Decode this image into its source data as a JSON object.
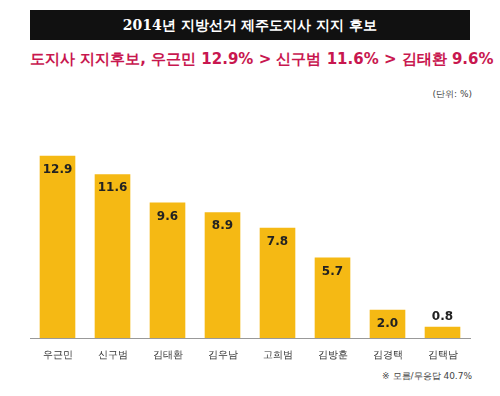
{
  "chart_data": {
    "type": "bar",
    "title": "2014년 지방선거 제주도지사 지지 후보",
    "subtitle": "도지사 지지후보, 우근민 12.9% > 신구범 11.6% > 김태환 9.6%",
    "annotations": [
      "(단위: %)",
      "※ 모름/무응답 40.7%"
    ],
    "categories": [
      "우근민",
      "신구범",
      "김태환",
      "김우남",
      "고희범",
      "김방훈",
      "김경택",
      "김택남"
    ],
    "values": [
      12.9,
      11.6,
      9.6,
      8.9,
      7.8,
      5.7,
      2.0,
      0.8
    ],
    "value_labels": [
      "12.9",
      "11.6",
      "9.6",
      "8.9",
      "7.8",
      "5.7",
      "2.0",
      "0.8"
    ],
    "color": "#f5b914",
    "ylim": [
      0,
      16
    ],
    "grid": false,
    "data_labels": true,
    "tick_labels": "x"
  }
}
